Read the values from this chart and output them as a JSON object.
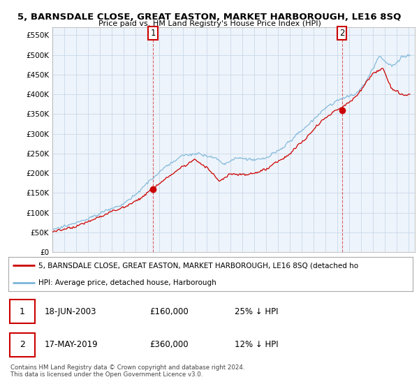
{
  "title": "5, BARNSDALE CLOSE, GREAT EASTON, MARKET HARBOROUGH, LE16 8SQ",
  "subtitle": "Price paid vs. HM Land Registry's House Price Index (HPI)",
  "ylabel_ticks": [
    "£0",
    "£50K",
    "£100K",
    "£150K",
    "£200K",
    "£250K",
    "£300K",
    "£350K",
    "£400K",
    "£450K",
    "£500K",
    "£550K"
  ],
  "ytick_values": [
    0,
    50000,
    100000,
    150000,
    200000,
    250000,
    300000,
    350000,
    400000,
    450000,
    500000,
    550000
  ],
  "ylim": [
    0,
    570000
  ],
  "hpi_color": "#7ab5d8",
  "price_color": "#cc0000",
  "sale1_year": 2003.46,
  "sale1_val": 160000,
  "sale2_year": 2019.37,
  "sale2_val": 360000,
  "legend_line1": "5, BARNSDALE CLOSE, GREAT EASTON, MARKET HARBOROUGH, LE16 8SQ (detached ho",
  "legend_line2": "HPI: Average price, detached house, Harborough",
  "background_color": "#ffffff",
  "plot_bg_color": "#eef4fb",
  "grid_color": "#c8d8e8"
}
